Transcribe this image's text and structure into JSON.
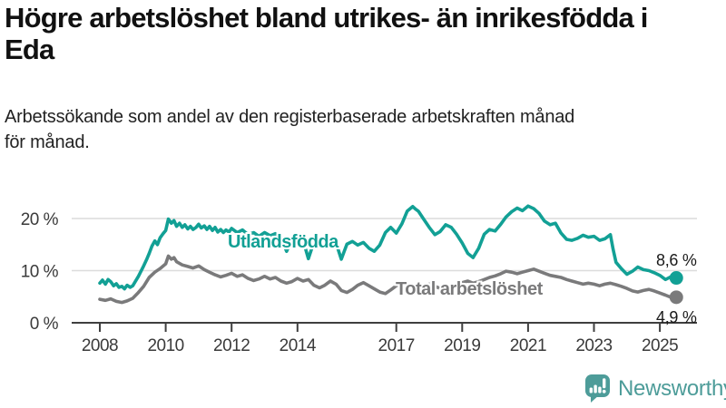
{
  "header": {
    "title": "Högre arbetslöshet bland utrikes- än inrikesfödda i\nEda",
    "subtitle": "Arbetssökande som andel av den registerbaserade arbetskraften månad\nför månad."
  },
  "branding": {
    "logo_text": "Newsworthy",
    "logo_color": "#4d9c99"
  },
  "colors": {
    "utlandsfodda": "#12a095",
    "total": "#7a7a7b",
    "grid": "#dcdcdc",
    "axis": "#3f3f3f",
    "axis_text": "#3a3a3a",
    "title_text": "#111111",
    "end_label_text": "#1a1a1a"
  },
  "chart_data": {
    "type": "line",
    "title": "Högre arbetslöshet bland utrikes- än inrikesfödda i Eda",
    "subtitle": "Arbetssökande som andel av den registerbaserade arbetskraften månad för månad.",
    "unit": "%",
    "grid": "horizontal-only",
    "legend_position": "inline-labels",
    "x_axis": {
      "range": [
        2007.9,
        2026.1
      ],
      "tick_years": [
        2008,
        2010,
        2012,
        2014,
        2017,
        2019,
        2021,
        2023,
        2025
      ],
      "tick_labels": [
        "2008",
        "2010",
        "2012",
        "2014",
        "2017",
        "2019",
        "2021",
        "2023",
        "2025"
      ]
    },
    "y_axis": {
      "range": [
        0,
        24
      ],
      "ticks": [
        {
          "value": 0,
          "label": "0 %"
        },
        {
          "value": 10,
          "label": "10 %"
        },
        {
          "value": 20,
          "label": "20 %"
        }
      ]
    },
    "series": [
      {
        "name": "Utlandsfödda",
        "color": "#12a095",
        "end_label": "8,6 %",
        "end_value": 8.6,
        "points": [
          [
            2008.0,
            7.6
          ],
          [
            2008.08,
            8.2
          ],
          [
            2008.17,
            7.4
          ],
          [
            2008.25,
            8.3
          ],
          [
            2008.33,
            7.9
          ],
          [
            2008.42,
            7.1
          ],
          [
            2008.5,
            7.5
          ],
          [
            2008.58,
            6.8
          ],
          [
            2008.67,
            7.0
          ],
          [
            2008.75,
            6.5
          ],
          [
            2008.83,
            7.2
          ],
          [
            2008.92,
            6.8
          ],
          [
            2009.0,
            7.1
          ],
          [
            2009.17,
            8.9
          ],
          [
            2009.33,
            10.9
          ],
          [
            2009.42,
            12.1
          ],
          [
            2009.5,
            13.3
          ],
          [
            2009.58,
            14.7
          ],
          [
            2009.67,
            15.7
          ],
          [
            2009.75,
            15.0
          ],
          [
            2009.83,
            16.3
          ],
          [
            2009.92,
            17.1
          ],
          [
            2010.0,
            17.7
          ],
          [
            2010.08,
            19.9
          ],
          [
            2010.17,
            19.1
          ],
          [
            2010.25,
            19.6
          ],
          [
            2010.33,
            18.5
          ],
          [
            2010.42,
            19.1
          ],
          [
            2010.5,
            18.3
          ],
          [
            2010.58,
            18.8
          ],
          [
            2010.67,
            18.0
          ],
          [
            2010.75,
            18.5
          ],
          [
            2010.83,
            17.9
          ],
          [
            2010.92,
            18.3
          ],
          [
            2011.0,
            18.9
          ],
          [
            2011.08,
            18.2
          ],
          [
            2011.17,
            18.6
          ],
          [
            2011.25,
            17.9
          ],
          [
            2011.33,
            18.5
          ],
          [
            2011.42,
            17.7
          ],
          [
            2011.5,
            18.3
          ],
          [
            2011.58,
            17.4
          ],
          [
            2011.67,
            17.9
          ],
          [
            2011.75,
            17.3
          ],
          [
            2011.83,
            17.8
          ],
          [
            2011.92,
            17.4
          ],
          [
            2012.0,
            18.1
          ],
          [
            2012.17,
            17.3
          ],
          [
            2012.33,
            17.8
          ],
          [
            2012.5,
            16.9
          ],
          [
            2012.67,
            17.3
          ],
          [
            2012.83,
            16.6
          ],
          [
            2013.0,
            17.3
          ],
          [
            2013.17,
            16.7
          ],
          [
            2013.33,
            17.1
          ],
          [
            2013.5,
            16.3
          ],
          [
            2013.67,
            13.7
          ],
          [
            2013.83,
            15.9
          ],
          [
            2014.0,
            16.4
          ],
          [
            2014.17,
            15.8
          ],
          [
            2014.33,
            12.3
          ],
          [
            2014.5,
            15.5
          ],
          [
            2014.67,
            16.0
          ],
          [
            2014.83,
            15.3
          ],
          [
            2015.0,
            15.9
          ],
          [
            2015.17,
            15.3
          ],
          [
            2015.33,
            12.2
          ],
          [
            2015.5,
            15.1
          ],
          [
            2015.67,
            15.6
          ],
          [
            2015.83,
            14.9
          ],
          [
            2016.0,
            15.4
          ],
          [
            2016.17,
            14.3
          ],
          [
            2016.33,
            13.7
          ],
          [
            2016.5,
            14.9
          ],
          [
            2016.67,
            17.3
          ],
          [
            2016.83,
            18.3
          ],
          [
            2017.0,
            17.2
          ],
          [
            2017.17,
            19.0
          ],
          [
            2017.33,
            21.4
          ],
          [
            2017.5,
            22.3
          ],
          [
            2017.58,
            21.8
          ],
          [
            2017.67,
            21.4
          ],
          [
            2017.83,
            19.9
          ],
          [
            2018.0,
            18.3
          ],
          [
            2018.17,
            16.9
          ],
          [
            2018.33,
            17.5
          ],
          [
            2018.5,
            18.8
          ],
          [
            2018.67,
            18.3
          ],
          [
            2018.83,
            17.0
          ],
          [
            2019.0,
            15.3
          ],
          [
            2019.17,
            13.3
          ],
          [
            2019.33,
            12.5
          ],
          [
            2019.5,
            14.3
          ],
          [
            2019.67,
            17.0
          ],
          [
            2019.83,
            17.9
          ],
          [
            2020.0,
            17.6
          ],
          [
            2020.17,
            18.9
          ],
          [
            2020.33,
            20.3
          ],
          [
            2020.5,
            21.3
          ],
          [
            2020.67,
            22.0
          ],
          [
            2020.83,
            21.5
          ],
          [
            2021.0,
            22.4
          ],
          [
            2021.17,
            21.9
          ],
          [
            2021.33,
            21.0
          ],
          [
            2021.5,
            19.5
          ],
          [
            2021.67,
            18.8
          ],
          [
            2021.83,
            19.1
          ],
          [
            2022.0,
            17.2
          ],
          [
            2022.17,
            16.0
          ],
          [
            2022.33,
            15.8
          ],
          [
            2022.5,
            16.2
          ],
          [
            2022.67,
            16.8
          ],
          [
            2022.83,
            16.4
          ],
          [
            2023.0,
            16.6
          ],
          [
            2023.17,
            15.8
          ],
          [
            2023.33,
            16.1
          ],
          [
            2023.5,
            16.9
          ],
          [
            2023.58,
            14.1
          ],
          [
            2023.67,
            11.6
          ],
          [
            2023.83,
            10.4
          ],
          [
            2024.0,
            9.3
          ],
          [
            2024.17,
            9.9
          ],
          [
            2024.33,
            10.7
          ],
          [
            2024.5,
            10.2
          ],
          [
            2024.67,
            10.0
          ],
          [
            2024.83,
            9.6
          ],
          [
            2025.0,
            9.1
          ],
          [
            2025.17,
            8.3
          ],
          [
            2025.33,
            8.8
          ],
          [
            2025.42,
            8.4
          ],
          [
            2025.5,
            8.6
          ]
        ]
      },
      {
        "name": "Total arbetslöshet",
        "color": "#7a7a7b",
        "end_label": "4,9 %",
        "end_value": 4.9,
        "points": [
          [
            2008.0,
            4.5
          ],
          [
            2008.17,
            4.3
          ],
          [
            2008.33,
            4.6
          ],
          [
            2008.5,
            4.1
          ],
          [
            2008.67,
            3.9
          ],
          [
            2008.83,
            4.2
          ],
          [
            2009.0,
            4.7
          ],
          [
            2009.17,
            5.8
          ],
          [
            2009.33,
            7.0
          ],
          [
            2009.5,
            8.7
          ],
          [
            2009.67,
            9.7
          ],
          [
            2009.83,
            10.4
          ],
          [
            2010.0,
            11.3
          ],
          [
            2010.08,
            12.8
          ],
          [
            2010.17,
            12.2
          ],
          [
            2010.25,
            12.5
          ],
          [
            2010.33,
            11.7
          ],
          [
            2010.5,
            11.1
          ],
          [
            2010.67,
            10.8
          ],
          [
            2010.83,
            10.5
          ],
          [
            2011.0,
            10.9
          ],
          [
            2011.17,
            10.2
          ],
          [
            2011.33,
            9.7
          ],
          [
            2011.5,
            9.2
          ],
          [
            2011.67,
            8.8
          ],
          [
            2011.83,
            9.1
          ],
          [
            2012.0,
            9.5
          ],
          [
            2012.17,
            8.9
          ],
          [
            2012.33,
            9.2
          ],
          [
            2012.5,
            8.5
          ],
          [
            2012.67,
            8.1
          ],
          [
            2012.83,
            8.4
          ],
          [
            2013.0,
            8.9
          ],
          [
            2013.17,
            8.4
          ],
          [
            2013.33,
            8.7
          ],
          [
            2013.5,
            8.0
          ],
          [
            2013.67,
            7.6
          ],
          [
            2013.83,
            7.9
          ],
          [
            2014.0,
            8.5
          ],
          [
            2014.17,
            8.0
          ],
          [
            2014.33,
            8.3
          ],
          [
            2014.5,
            7.2
          ],
          [
            2014.67,
            6.7
          ],
          [
            2014.83,
            7.2
          ],
          [
            2015.0,
            8.0
          ],
          [
            2015.17,
            7.4
          ],
          [
            2015.33,
            6.2
          ],
          [
            2015.5,
            5.8
          ],
          [
            2015.67,
            6.4
          ],
          [
            2015.83,
            7.2
          ],
          [
            2016.0,
            7.7
          ],
          [
            2016.17,
            7.1
          ],
          [
            2016.33,
            6.5
          ],
          [
            2016.5,
            5.9
          ],
          [
            2016.67,
            5.6
          ],
          [
            2016.83,
            6.3
          ],
          [
            2017.0,
            7.1
          ],
          [
            2017.17,
            7.5
          ],
          [
            2017.33,
            7.1
          ],
          [
            2017.5,
            6.6
          ],
          [
            2017.67,
            6.3
          ],
          [
            2017.83,
            6.8
          ],
          [
            2018.0,
            7.4
          ],
          [
            2018.17,
            7.0
          ],
          [
            2018.33,
            6.6
          ],
          [
            2018.5,
            6.2
          ],
          [
            2018.67,
            6.5
          ],
          [
            2018.83,
            7.0
          ],
          [
            2019.0,
            7.7
          ],
          [
            2019.17,
            8.0
          ],
          [
            2019.33,
            7.6
          ],
          [
            2019.5,
            7.9
          ],
          [
            2019.67,
            8.3
          ],
          [
            2019.83,
            8.7
          ],
          [
            2020.0,
            9.0
          ],
          [
            2020.17,
            9.4
          ],
          [
            2020.33,
            9.9
          ],
          [
            2020.5,
            9.7
          ],
          [
            2020.67,
            9.4
          ],
          [
            2020.83,
            9.7
          ],
          [
            2021.0,
            10.0
          ],
          [
            2021.17,
            10.3
          ],
          [
            2021.33,
            9.9
          ],
          [
            2021.5,
            9.5
          ],
          [
            2021.67,
            9.1
          ],
          [
            2021.83,
            8.9
          ],
          [
            2022.0,
            8.7
          ],
          [
            2022.17,
            8.3
          ],
          [
            2022.33,
            8.0
          ],
          [
            2022.5,
            7.7
          ],
          [
            2022.67,
            7.4
          ],
          [
            2022.83,
            7.6
          ],
          [
            2023.0,
            7.4
          ],
          [
            2023.17,
            7.1
          ],
          [
            2023.33,
            7.4
          ],
          [
            2023.5,
            7.6
          ],
          [
            2023.67,
            7.3
          ],
          [
            2023.83,
            7.0
          ],
          [
            2024.0,
            6.6
          ],
          [
            2024.17,
            6.1
          ],
          [
            2024.33,
            5.9
          ],
          [
            2024.5,
            6.2
          ],
          [
            2024.67,
            6.4
          ],
          [
            2024.83,
            6.1
          ],
          [
            2025.0,
            5.7
          ],
          [
            2025.17,
            5.3
          ],
          [
            2025.33,
            4.9
          ],
          [
            2025.42,
            4.7
          ],
          [
            2025.5,
            4.9
          ]
        ]
      }
    ]
  }
}
